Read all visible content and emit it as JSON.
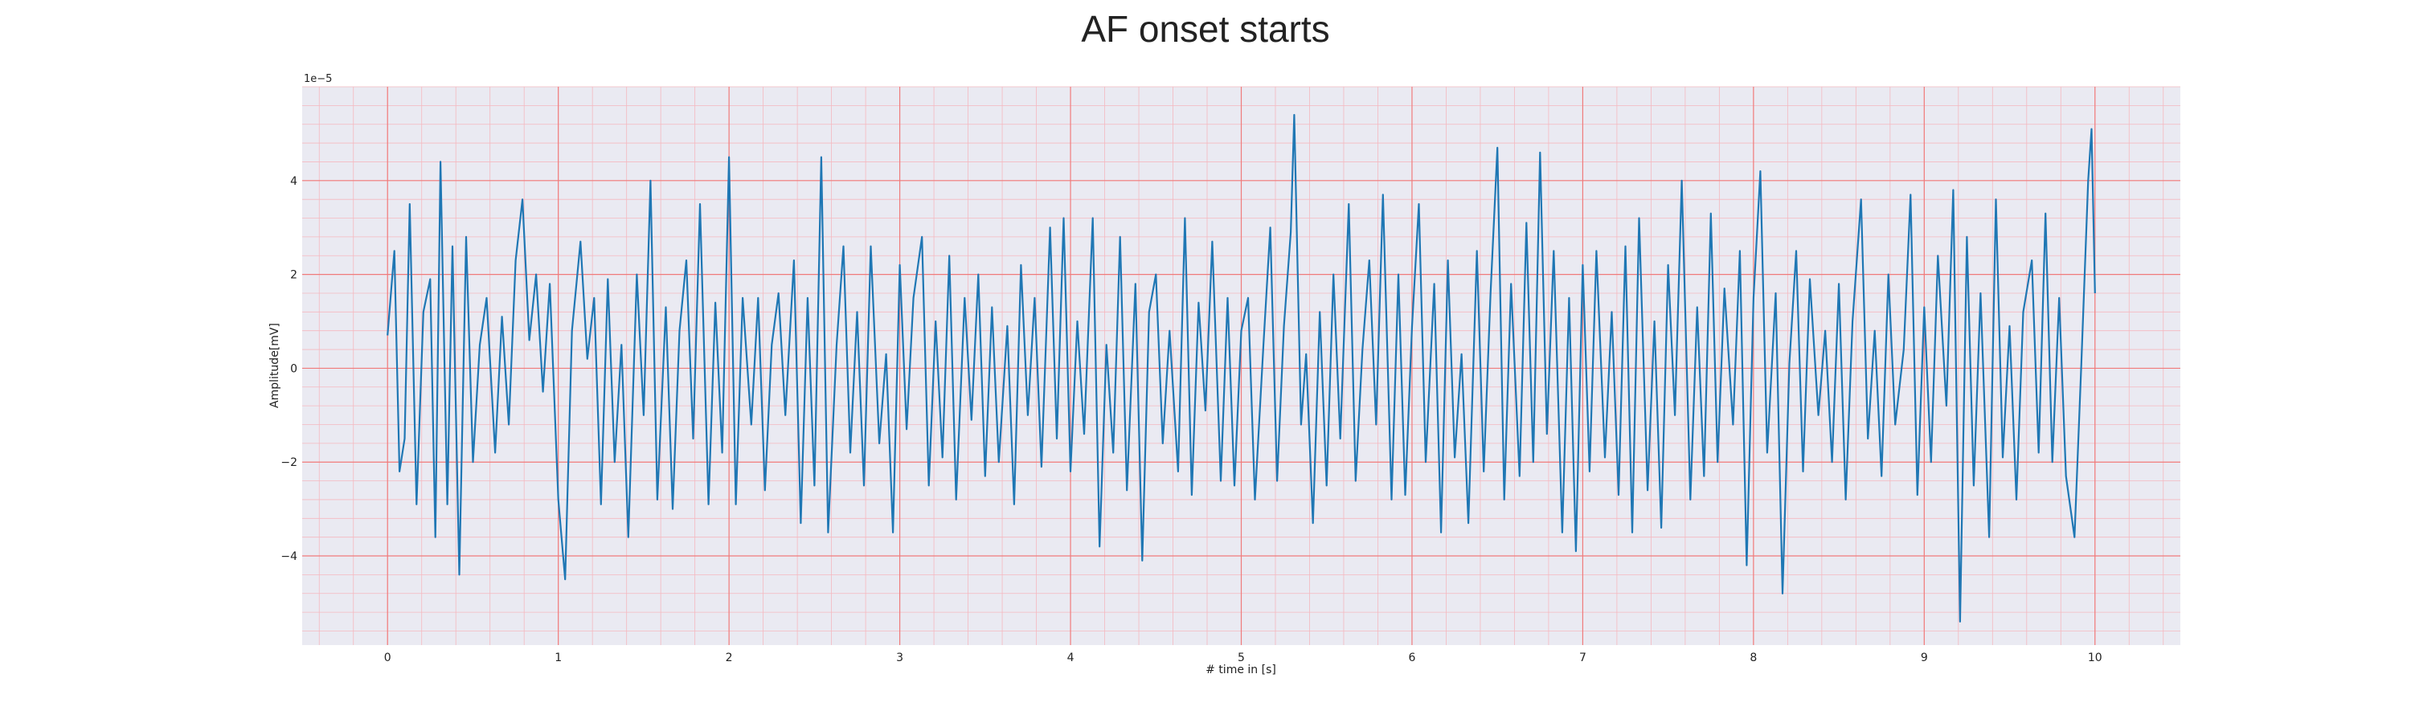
{
  "chart_data": {
    "type": "line",
    "title": "AF onset starts",
    "xlabel": "# time in [s]",
    "ylabel": "Amplitude[mV]",
    "y_offset_label": "1e−5",
    "xlim": [
      -0.5,
      10.5
    ],
    "ylim": [
      -5.9,
      6.0
    ],
    "x_ticks": [
      0,
      1,
      2,
      3,
      4,
      5,
      6,
      7,
      8,
      9,
      10
    ],
    "y_ticks": [
      -4,
      -2,
      0,
      2,
      4
    ],
    "x_tick_labels": [
      "0",
      "1",
      "2",
      "3",
      "4",
      "5",
      "6",
      "7",
      "8",
      "9",
      "10"
    ],
    "y_tick_labels": [
      "−4",
      "−2",
      "0",
      "2",
      "4"
    ],
    "grid": true,
    "minor_grid": true,
    "colors": {
      "background": "#eaeaf2",
      "major_grid": "#f07b7b",
      "minor_grid": "#f5b8bf",
      "line": "#1f77b4"
    },
    "series": [
      {
        "values": [
          {
            "x": 0.0,
            "y": 0.7
          },
          {
            "x": 0.04,
            "y": 2.5
          },
          {
            "x": 0.07,
            "y": -2.2
          },
          {
            "x": 0.1,
            "y": -1.5
          },
          {
            "x": 0.13,
            "y": 3.5
          },
          {
            "x": 0.17,
            "y": -2.9
          },
          {
            "x": 0.21,
            "y": 1.2
          },
          {
            "x": 0.25,
            "y": 1.9
          },
          {
            "x": 0.28,
            "y": -3.6
          },
          {
            "x": 0.31,
            "y": 4.4
          },
          {
            "x": 0.35,
            "y": -2.9
          },
          {
            "x": 0.38,
            "y": 2.6
          },
          {
            "x": 0.42,
            "y": -4.4
          },
          {
            "x": 0.46,
            "y": 2.8
          },
          {
            "x": 0.5,
            "y": -2.0
          },
          {
            "x": 0.54,
            "y": 0.5
          },
          {
            "x": 0.58,
            "y": 1.5
          },
          {
            "x": 0.63,
            "y": -1.8
          },
          {
            "x": 0.67,
            "y": 1.1
          },
          {
            "x": 0.71,
            "y": -1.2
          },
          {
            "x": 0.75,
            "y": 2.3
          },
          {
            "x": 0.79,
            "y": 3.6
          },
          {
            "x": 0.83,
            "y": 0.6
          },
          {
            "x": 0.87,
            "y": 2.0
          },
          {
            "x": 0.91,
            "y": -0.5
          },
          {
            "x": 0.95,
            "y": 1.8
          },
          {
            "x": 1.0,
            "y": -2.8
          },
          {
            "x": 1.04,
            "y": -4.5
          },
          {
            "x": 1.08,
            "y": 0.8
          },
          {
            "x": 1.13,
            "y": 2.7
          },
          {
            "x": 1.17,
            "y": 0.2
          },
          {
            "x": 1.21,
            "y": 1.5
          },
          {
            "x": 1.25,
            "y": -2.9
          },
          {
            "x": 1.29,
            "y": 1.9
          },
          {
            "x": 1.33,
            "y": -2.0
          },
          {
            "x": 1.37,
            "y": 0.5
          },
          {
            "x": 1.41,
            "y": -3.6
          },
          {
            "x": 1.46,
            "y": 2.0
          },
          {
            "x": 1.5,
            "y": -1.0
          },
          {
            "x": 1.54,
            "y": 4.0
          },
          {
            "x": 1.58,
            "y": -2.8
          },
          {
            "x": 1.63,
            "y": 1.3
          },
          {
            "x": 1.67,
            "y": -3.0
          },
          {
            "x": 1.71,
            "y": 0.8
          },
          {
            "x": 1.75,
            "y": 2.3
          },
          {
            "x": 1.79,
            "y": -1.5
          },
          {
            "x": 1.83,
            "y": 3.5
          },
          {
            "x": 1.88,
            "y": -2.9
          },
          {
            "x": 1.92,
            "y": 1.4
          },
          {
            "x": 1.96,
            "y": -1.8
          },
          {
            "x": 2.0,
            "y": 4.5
          },
          {
            "x": 2.04,
            "y": -2.9
          },
          {
            "x": 2.08,
            "y": 1.5
          },
          {
            "x": 2.13,
            "y": -1.2
          },
          {
            "x": 2.17,
            "y": 1.5
          },
          {
            "x": 2.21,
            "y": -2.6
          },
          {
            "x": 2.25,
            "y": 0.5
          },
          {
            "x": 2.29,
            "y": 1.6
          },
          {
            "x": 2.33,
            "y": -1.0
          },
          {
            "x": 2.38,
            "y": 2.3
          },
          {
            "x": 2.42,
            "y": -3.3
          },
          {
            "x": 2.46,
            "y": 1.5
          },
          {
            "x": 2.5,
            "y": -2.5
          },
          {
            "x": 2.54,
            "y": 4.5
          },
          {
            "x": 2.58,
            "y": -3.5
          },
          {
            "x": 2.63,
            "y": 0.5
          },
          {
            "x": 2.67,
            "y": 2.6
          },
          {
            "x": 2.71,
            "y": -1.8
          },
          {
            "x": 2.75,
            "y": 1.2
          },
          {
            "x": 2.79,
            "y": -2.5
          },
          {
            "x": 2.83,
            "y": 2.6
          },
          {
            "x": 2.88,
            "y": -1.6
          },
          {
            "x": 2.92,
            "y": 0.3
          },
          {
            "x": 2.96,
            "y": -3.5
          },
          {
            "x": 3.0,
            "y": 2.2
          },
          {
            "x": 3.04,
            "y": -1.3
          },
          {
            "x": 3.08,
            "y": 1.5
          },
          {
            "x": 3.13,
            "y": 2.8
          },
          {
            "x": 3.17,
            "y": -2.5
          },
          {
            "x": 3.21,
            "y": 1.0
          },
          {
            "x": 3.25,
            "y": -1.9
          },
          {
            "x": 3.29,
            "y": 2.4
          },
          {
            "x": 3.33,
            "y": -2.8
          },
          {
            "x": 3.38,
            "y": 1.5
          },
          {
            "x": 3.42,
            "y": -1.1
          },
          {
            "x": 3.46,
            "y": 2.0
          },
          {
            "x": 3.5,
            "y": -2.3
          },
          {
            "x": 3.54,
            "y": 1.3
          },
          {
            "x": 3.58,
            "y": -2.0
          },
          {
            "x": 3.63,
            "y": 0.9
          },
          {
            "x": 3.67,
            "y": -2.9
          },
          {
            "x": 3.71,
            "y": 2.2
          },
          {
            "x": 3.75,
            "y": -1.0
          },
          {
            "x": 3.79,
            "y": 1.5
          },
          {
            "x": 3.83,
            "y": -2.1
          },
          {
            "x": 3.88,
            "y": 3.0
          },
          {
            "x": 3.92,
            "y": -1.5
          },
          {
            "x": 3.96,
            "y": 3.2
          },
          {
            "x": 4.0,
            "y": -2.2
          },
          {
            "x": 4.04,
            "y": 1.0
          },
          {
            "x": 4.08,
            "y": -1.4
          },
          {
            "x": 4.13,
            "y": 3.2
          },
          {
            "x": 4.17,
            "y": -3.8
          },
          {
            "x": 4.21,
            "y": 0.5
          },
          {
            "x": 4.25,
            "y": -1.8
          },
          {
            "x": 4.29,
            "y": 2.8
          },
          {
            "x": 4.33,
            "y": -2.6
          },
          {
            "x": 4.38,
            "y": 1.8
          },
          {
            "x": 4.42,
            "y": -4.1
          },
          {
            "x": 4.46,
            "y": 1.2
          },
          {
            "x": 4.5,
            "y": 2.0
          },
          {
            "x": 4.54,
            "y": -1.6
          },
          {
            "x": 4.58,
            "y": 0.8
          },
          {
            "x": 4.63,
            "y": -2.2
          },
          {
            "x": 4.67,
            "y": 3.2
          },
          {
            "x": 4.71,
            "y": -2.7
          },
          {
            "x": 4.75,
            "y": 1.4
          },
          {
            "x": 4.79,
            "y": -0.9
          },
          {
            "x": 4.83,
            "y": 2.7
          },
          {
            "x": 4.88,
            "y": -2.4
          },
          {
            "x": 4.92,
            "y": 1.5
          },
          {
            "x": 4.96,
            "y": -2.5
          },
          {
            "x": 5.0,
            "y": 0.8
          },
          {
            "x": 5.04,
            "y": 1.5
          },
          {
            "x": 5.08,
            "y": -2.8
          },
          {
            "x": 5.13,
            "y": 0.5
          },
          {
            "x": 5.17,
            "y": 3.0
          },
          {
            "x": 5.21,
            "y": -2.4
          },
          {
            "x": 5.25,
            "y": 0.9
          },
          {
            "x": 5.29,
            "y": 2.9
          },
          {
            "x": 5.31,
            "y": 5.4
          },
          {
            "x": 5.35,
            "y": -1.2
          },
          {
            "x": 5.38,
            "y": 0.3
          },
          {
            "x": 5.42,
            "y": -3.3
          },
          {
            "x": 5.46,
            "y": 1.2
          },
          {
            "x": 5.5,
            "y": -2.5
          },
          {
            "x": 5.54,
            "y": 2.0
          },
          {
            "x": 5.58,
            "y": -1.5
          },
          {
            "x": 5.63,
            "y": 3.5
          },
          {
            "x": 5.67,
            "y": -2.4
          },
          {
            "x": 5.71,
            "y": 0.4
          },
          {
            "x": 5.75,
            "y": 2.3
          },
          {
            "x": 5.79,
            "y": -1.2
          },
          {
            "x": 5.83,
            "y": 3.7
          },
          {
            "x": 5.88,
            "y": -2.8
          },
          {
            "x": 5.92,
            "y": 2.0
          },
          {
            "x": 5.96,
            "y": -2.7
          },
          {
            "x": 6.0,
            "y": 0.9
          },
          {
            "x": 6.04,
            "y": 3.5
          },
          {
            "x": 6.08,
            "y": -2.0
          },
          {
            "x": 6.13,
            "y": 1.8
          },
          {
            "x": 6.17,
            "y": -3.5
          },
          {
            "x": 6.21,
            "y": 2.3
          },
          {
            "x": 6.25,
            "y": -1.9
          },
          {
            "x": 6.29,
            "y": 0.3
          },
          {
            "x": 6.33,
            "y": -3.3
          },
          {
            "x": 6.38,
            "y": 2.5
          },
          {
            "x": 6.42,
            "y": -2.2
          },
          {
            "x": 6.46,
            "y": 1.6
          },
          {
            "x": 6.5,
            "y": 4.7
          },
          {
            "x": 6.54,
            "y": -2.8
          },
          {
            "x": 6.58,
            "y": 1.8
          },
          {
            "x": 6.63,
            "y": -2.3
          },
          {
            "x": 6.67,
            "y": 3.1
          },
          {
            "x": 6.71,
            "y": -2.0
          },
          {
            "x": 6.75,
            "y": 4.6
          },
          {
            "x": 6.79,
            "y": -1.4
          },
          {
            "x": 6.83,
            "y": 2.5
          },
          {
            "x": 6.88,
            "y": -3.5
          },
          {
            "x": 6.92,
            "y": 1.5
          },
          {
            "x": 6.96,
            "y": -3.9
          },
          {
            "x": 7.0,
            "y": 2.2
          },
          {
            "x": 7.04,
            "y": -2.2
          },
          {
            "x": 7.08,
            "y": 2.5
          },
          {
            "x": 7.13,
            "y": -1.9
          },
          {
            "x": 7.17,
            "y": 1.2
          },
          {
            "x": 7.21,
            "y": -2.7
          },
          {
            "x": 7.25,
            "y": 2.6
          },
          {
            "x": 7.29,
            "y": -3.5
          },
          {
            "x": 7.33,
            "y": 3.2
          },
          {
            "x": 7.38,
            "y": -2.6
          },
          {
            "x": 7.42,
            "y": 1.0
          },
          {
            "x": 7.46,
            "y": -3.4
          },
          {
            "x": 7.5,
            "y": 2.2
          },
          {
            "x": 7.54,
            "y": -1.0
          },
          {
            "x": 7.58,
            "y": 4.0
          },
          {
            "x": 7.63,
            "y": -2.8
          },
          {
            "x": 7.67,
            "y": 1.3
          },
          {
            "x": 7.71,
            "y": -2.3
          },
          {
            "x": 7.75,
            "y": 3.3
          },
          {
            "x": 7.79,
            "y": -2.0
          },
          {
            "x": 7.83,
            "y": 1.7
          },
          {
            "x": 7.88,
            "y": -1.2
          },
          {
            "x": 7.92,
            "y": 2.5
          },
          {
            "x": 7.96,
            "y": -4.2
          },
          {
            "x": 8.0,
            "y": 1.5
          },
          {
            "x": 8.04,
            "y": 4.2
          },
          {
            "x": 8.08,
            "y": -1.8
          },
          {
            "x": 8.13,
            "y": 1.6
          },
          {
            "x": 8.17,
            "y": -4.8
          },
          {
            "x": 8.21,
            "y": 0.1
          },
          {
            "x": 8.25,
            "y": 2.5
          },
          {
            "x": 8.29,
            "y": -2.2
          },
          {
            "x": 8.33,
            "y": 1.9
          },
          {
            "x": 8.38,
            "y": -1.0
          },
          {
            "x": 8.42,
            "y": 0.8
          },
          {
            "x": 8.46,
            "y": -2.0
          },
          {
            "x": 8.5,
            "y": 1.8
          },
          {
            "x": 8.54,
            "y": -2.8
          },
          {
            "x": 8.58,
            "y": 1.0
          },
          {
            "x": 8.63,
            "y": 3.6
          },
          {
            "x": 8.67,
            "y": -1.5
          },
          {
            "x": 8.71,
            "y": 0.8
          },
          {
            "x": 8.75,
            "y": -2.3
          },
          {
            "x": 8.79,
            "y": 2.0
          },
          {
            "x": 8.83,
            "y": -1.2
          },
          {
            "x": 8.88,
            "y": 0.4
          },
          {
            "x": 8.92,
            "y": 3.7
          },
          {
            "x": 8.96,
            "y": -2.7
          },
          {
            "x": 9.0,
            "y": 1.3
          },
          {
            "x": 9.04,
            "y": -2.0
          },
          {
            "x": 9.08,
            "y": 2.4
          },
          {
            "x": 9.13,
            "y": -0.8
          },
          {
            "x": 9.17,
            "y": 3.8
          },
          {
            "x": 9.21,
            "y": -5.4
          },
          {
            "x": 9.25,
            "y": 2.8
          },
          {
            "x": 9.29,
            "y": -2.5
          },
          {
            "x": 9.33,
            "y": 1.6
          },
          {
            "x": 9.38,
            "y": -3.6
          },
          {
            "x": 9.42,
            "y": 3.6
          },
          {
            "x": 9.46,
            "y": -1.9
          },
          {
            "x": 9.5,
            "y": 0.9
          },
          {
            "x": 9.54,
            "y": -2.8
          },
          {
            "x": 9.58,
            "y": 1.2
          },
          {
            "x": 9.63,
            "y": 2.3
          },
          {
            "x": 9.67,
            "y": -1.8
          },
          {
            "x": 9.71,
            "y": 3.3
          },
          {
            "x": 9.75,
            "y": -2.0
          },
          {
            "x": 9.79,
            "y": 1.5
          },
          {
            "x": 9.83,
            "y": -2.3
          },
          {
            "x": 9.88,
            "y": -3.6
          },
          {
            "x": 9.92,
            "y": 0.1
          },
          {
            "x": 9.96,
            "y": 4.0
          },
          {
            "x": 9.98,
            "y": 5.1
          },
          {
            "x": 10.0,
            "y": 1.6
          }
        ]
      }
    ]
  }
}
